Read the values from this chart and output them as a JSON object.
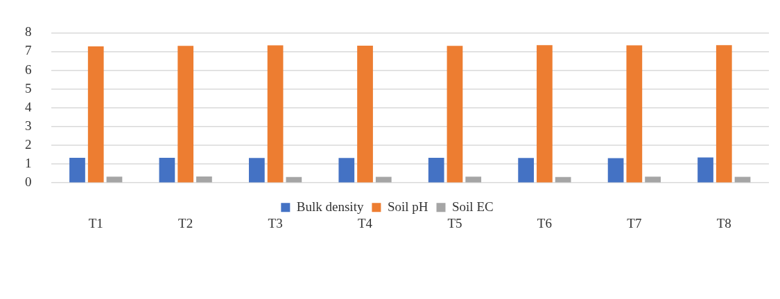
{
  "chart_data": {
    "type": "bar",
    "categories": [
      "T1",
      "T2",
      "T3",
      "T4",
      "T5",
      "T6",
      "T7",
      "T8"
    ],
    "series": [
      {
        "name": "Bulk density",
        "color": "#4472c4",
        "values": [
          1.34,
          1.34,
          1.33,
          1.33,
          1.34,
          1.33,
          1.32,
          1.35
        ]
      },
      {
        "name": "Soil pH",
        "color": "#ed7d31",
        "values": [
          7.28,
          7.3,
          7.33,
          7.31,
          7.3,
          7.34,
          7.33,
          7.34
        ]
      },
      {
        "name": "Soil EC",
        "color": "#a5a5a5",
        "values": [
          0.33,
          0.34,
          0.31,
          0.32,
          0.33,
          0.31,
          0.33,
          0.32
        ]
      }
    ],
    "ylim": [
      0,
      8
    ],
    "yticks": [
      0,
      1,
      2,
      3,
      4,
      5,
      6,
      7,
      8
    ],
    "grid": "y",
    "legend": "bottom"
  }
}
